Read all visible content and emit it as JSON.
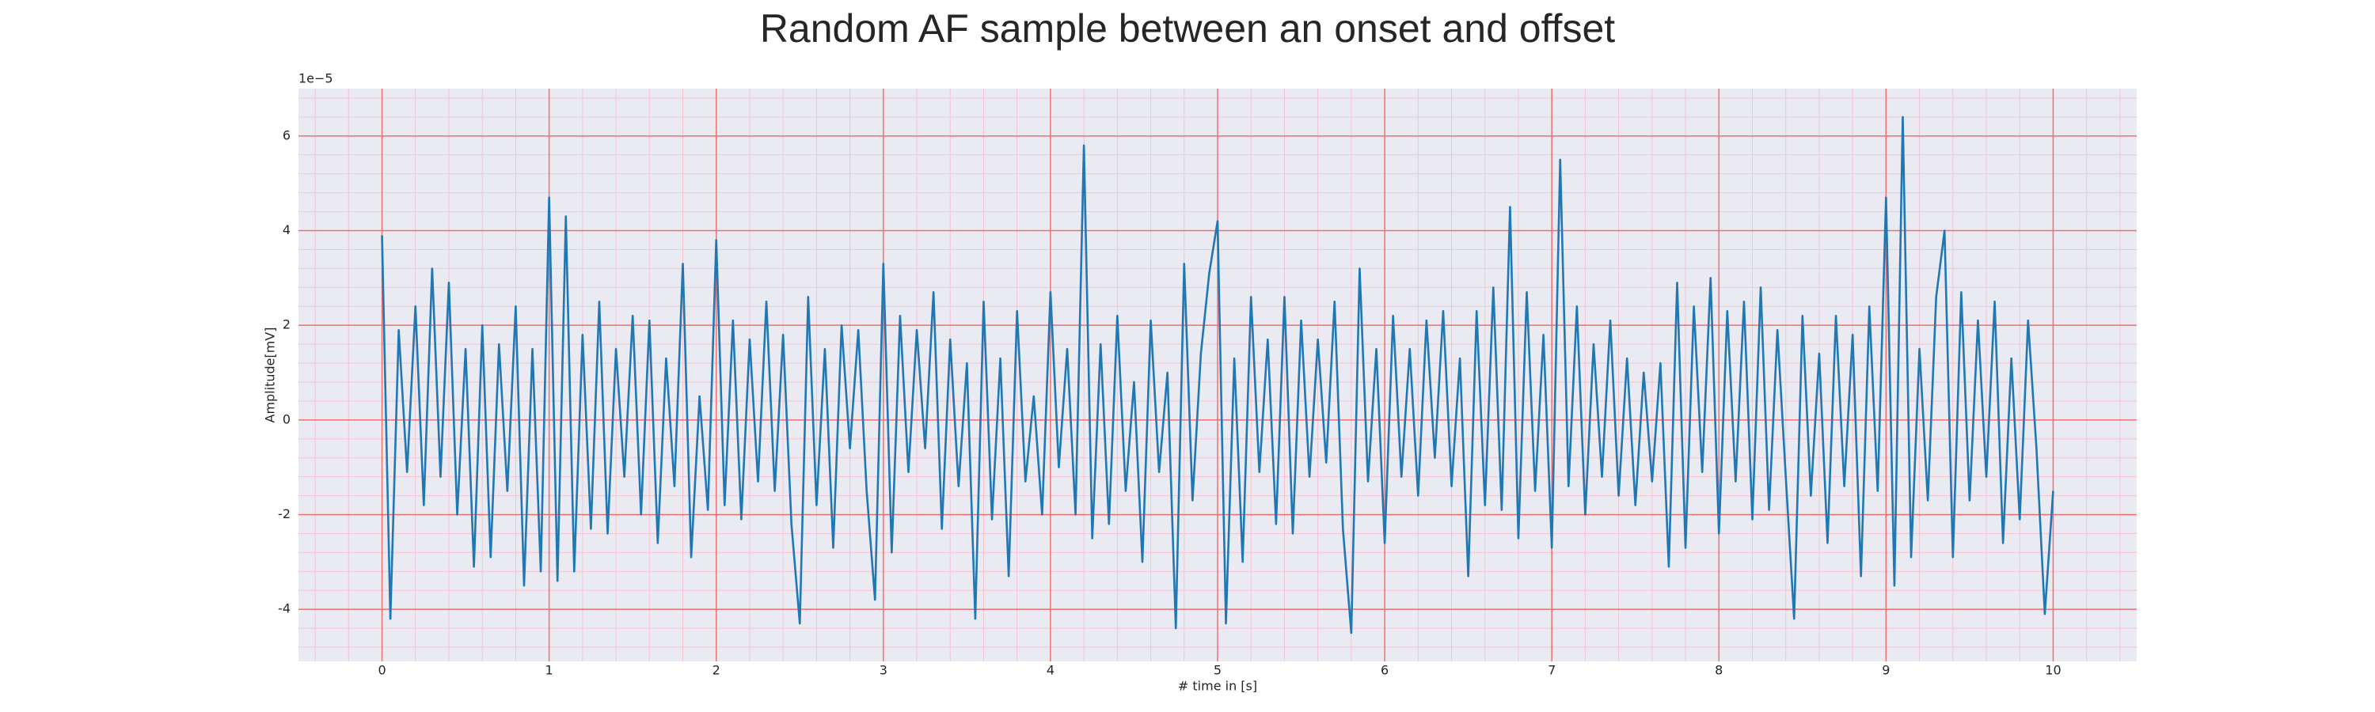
{
  "chart_data": {
    "type": "line",
    "title": "Random AF sample between an onset and offset",
    "xlabel": "# time in [s]",
    "ylabel": "Amplitude[mV]",
    "y_offset_label": "1e−5",
    "color": "#1f77b4",
    "background": "#eaeaf2",
    "grid": true,
    "grid_color": "#f07070",
    "minor_grid_color": "#f4c4d0",
    "xlim": [
      -0.5,
      10.5
    ],
    "ylim": [
      -5.1,
      7.0
    ],
    "xticks": [
      0,
      1,
      2,
      3,
      4,
      5,
      6,
      7,
      8,
      9,
      10
    ],
    "yticks": [
      -4,
      -2,
      0,
      2,
      4,
      6
    ],
    "xminorticks": [
      -0.4,
      -0.2,
      0,
      0.2,
      0.4,
      0.6,
      0.8,
      1,
      1.2,
      1.4,
      1.6,
      1.8,
      2,
      2.2,
      2.4,
      2.6,
      2.8,
      3,
      3.2,
      3.4,
      3.6,
      3.8,
      4,
      4.2,
      4.4,
      4.6,
      4.8,
      5,
      5.2,
      5.4,
      5.6,
      5.8,
      6,
      6.2,
      6.4,
      6.6,
      6.8,
      7,
      7.2,
      7.4,
      7.6,
      7.8,
      8,
      8.2,
      8.4,
      8.6,
      8.8,
      9,
      9.2,
      9.4,
      9.6,
      9.8,
      10,
      10.2,
      10.4
    ],
    "yminorticks": [
      -4.8,
      -4.4,
      -4,
      -3.6,
      -3.2,
      -2.8,
      -2.4,
      -2,
      -1.6,
      -1.2,
      -0.8,
      -0.4,
      0,
      0.4,
      0.8,
      1.2,
      1.6,
      2,
      2.4,
      2.8,
      3.2,
      3.6,
      4,
      4.4,
      4.8,
      5.2,
      5.6,
      6,
      6.4,
      6.8
    ],
    "x": [
      0,
      0.05,
      0.1,
      0.15,
      0.2,
      0.25,
      0.3,
      0.35,
      0.4,
      0.45,
      0.5,
      0.55,
      0.6,
      0.65,
      0.7,
      0.75,
      0.8,
      0.85,
      0.9,
      0.95,
      1,
      1.05,
      1.1,
      1.15,
      1.2,
      1.25,
      1.3,
      1.35,
      1.4,
      1.45,
      1.5,
      1.55,
      1.6,
      1.65,
      1.7,
      1.75,
      1.8,
      1.85,
      1.9,
      1.95,
      2,
      2.05,
      2.1,
      2.15,
      2.2,
      2.25,
      2.3,
      2.35,
      2.4,
      2.45,
      2.5,
      2.55,
      2.6,
      2.65,
      2.7,
      2.75,
      2.8,
      2.85,
      2.9,
      2.95,
      3,
      3.05,
      3.1,
      3.15,
      3.2,
      3.25,
      3.3,
      3.35,
      3.4,
      3.45,
      3.5,
      3.55,
      3.6,
      3.65,
      3.7,
      3.75,
      3.8,
      3.85,
      3.9,
      3.95,
      4,
      4.05,
      4.1,
      4.15,
      4.2,
      4.25,
      4.3,
      4.35,
      4.4,
      4.45,
      4.5,
      4.55,
      4.6,
      4.65,
      4.7,
      4.75,
      4.8,
      4.85,
      4.9,
      4.95,
      5,
      5.05,
      5.1,
      5.15,
      5.2,
      5.25,
      5.3,
      5.35,
      5.4,
      5.45,
      5.5,
      5.55,
      5.6,
      5.65,
      5.7,
      5.75,
      5.8,
      5.85,
      5.9,
      5.95,
      6,
      6.05,
      6.1,
      6.15,
      6.2,
      6.25,
      6.3,
      6.35,
      6.4,
      6.45,
      6.5,
      6.55,
      6.6,
      6.65,
      6.7,
      6.75,
      6.8,
      6.85,
      6.9,
      6.95,
      7,
      7.05,
      7.1,
      7.15,
      7.2,
      7.25,
      7.3,
      7.35,
      7.4,
      7.45,
      7.5,
      7.55,
      7.6,
      7.65,
      7.7,
      7.75,
      7.8,
      7.85,
      7.9,
      7.95,
      8,
      8.05,
      8.1,
      8.15,
      8.2,
      8.25,
      8.3,
      8.35,
      8.4,
      8.45,
      8.5,
      8.55,
      8.6,
      8.65,
      8.7,
      8.75,
      8.8,
      8.85,
      8.9,
      8.95,
      9,
      9.05,
      9.1,
      9.15,
      9.2,
      9.25,
      9.3,
      9.35,
      9.4,
      9.45,
      9.5,
      9.55,
      9.6,
      9.65,
      9.7,
      9.75,
      9.8,
      9.85,
      9.9,
      9.95,
      10
    ],
    "values": [
      3.9,
      -4.2,
      1.9,
      -1.1,
      2.4,
      -1.8,
      3.2,
      -1.2,
      2.9,
      -2.0,
      1.5,
      -3.1,
      2.0,
      -2.9,
      1.6,
      -1.5,
      2.4,
      -3.5,
      1.5,
      -3.2,
      4.7,
      -3.4,
      4.3,
      -3.2,
      1.8,
      -2.3,
      2.5,
      -2.4,
      1.5,
      -1.2,
      2.2,
      -2.0,
      2.1,
      -2.6,
      1.3,
      -1.4,
      3.3,
      -2.9,
      0.5,
      -1.9,
      3.8,
      -1.8,
      2.1,
      -2.1,
      1.7,
      -1.3,
      2.5,
      -1.5,
      1.8,
      -2.2,
      -4.3,
      2.6,
      -1.8,
      1.5,
      -2.7,
      2.0,
      -0.6,
      1.9,
      -1.5,
      -3.8,
      3.3,
      -2.8,
      2.2,
      -1.1,
      1.9,
      -0.6,
      2.7,
      -2.3,
      1.7,
      -1.4,
      1.2,
      -4.2,
      2.5,
      -2.1,
      1.3,
      -3.3,
      2.3,
      -1.3,
      0.5,
      -2.0,
      2.7,
      -1.0,
      1.5,
      -2.0,
      5.8,
      -2.5,
      1.6,
      -2.2,
      2.2,
      -1.5,
      0.8,
      -3.0,
      2.1,
      -1.1,
      1.0,
      -4.4,
      3.3,
      -1.7,
      1.4,
      3.1,
      4.2,
      -4.3,
      1.3,
      -3.0,
      2.6,
      -1.1,
      1.7,
      -2.2,
      2.6,
      -2.4,
      2.1,
      -1.2,
      1.7,
      -0.9,
      2.5,
      -2.3,
      -4.5,
      3.2,
      -1.3,
      1.5,
      -2.6,
      2.2,
      -1.2,
      1.5,
      -1.6,
      2.1,
      -0.8,
      2.3,
      -1.4,
      1.3,
      -3.3,
      2.3,
      -1.8,
      2.8,
      -1.9,
      4.5,
      -2.5,
      2.7,
      -1.5,
      1.8,
      -2.7,
      5.5,
      -1.4,
      2.4,
      -2.0,
      1.6,
      -1.2,
      2.1,
      -1.6,
      1.3,
      -1.8,
      1.0,
      -1.3,
      1.2,
      -3.1,
      2.9,
      -2.7,
      2.4,
      -1.1,
      3.0,
      -2.4,
      2.3,
      -1.3,
      2.5,
      -2.1,
      2.8,
      -1.9,
      1.9,
      -1.2,
      -4.2,
      2.2,
      -1.6,
      1.4,
      -2.6,
      2.2,
      -1.4,
      1.8,
      -3.3,
      2.4,
      -1.5,
      4.7,
      -3.5,
      6.4,
      -2.9,
      1.5,
      -1.7,
      2.6,
      4.0,
      -2.9,
      2.7,
      -1.7,
      2.1,
      -1.2,
      2.5,
      -2.6,
      1.3,
      -2.1,
      2.1,
      -0.6,
      -4.1,
      -1.5
    ]
  }
}
